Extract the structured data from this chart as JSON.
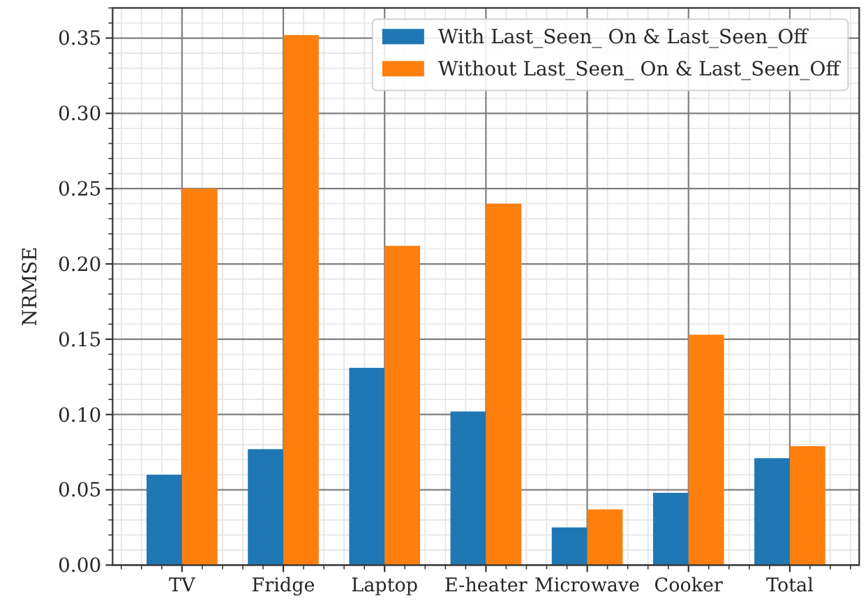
{
  "chart_data": {
    "type": "bar",
    "categories": [
      "TV",
      "Fridge",
      "Laptop",
      "E-heater",
      "Microwave",
      "Cooker",
      "Total"
    ],
    "series": [
      {
        "name": "With Last_Seen_ On & Last_Seen_Off",
        "color": "#1f77b4",
        "values": [
          0.06,
          0.077,
          0.131,
          0.102,
          0.025,
          0.048,
          0.071
        ]
      },
      {
        "name": "Without Last_Seen_ On & Last_Seen_Off",
        "color": "#ff7f0e",
        "values": [
          0.25,
          0.352,
          0.212,
          0.24,
          0.037,
          0.153,
          0.079
        ]
      }
    ],
    "ylabel": "NRMSE",
    "ylim": [
      0,
      0.37
    ],
    "yticks": [
      {
        "value": 0,
        "label": "0.00"
      },
      {
        "value": 0.05,
        "label": "0.05"
      },
      {
        "value": 0.1,
        "label": "0.10"
      },
      {
        "value": 0.15,
        "label": "0.15"
      },
      {
        "value": 0.2,
        "label": "0.20"
      },
      {
        "value": 0.25,
        "label": "0.25"
      },
      {
        "value": 0.3,
        "label": "0.30"
      },
      {
        "value": 0.35,
        "label": "0.35"
      }
    ],
    "grid": true,
    "legend": "top right"
  }
}
